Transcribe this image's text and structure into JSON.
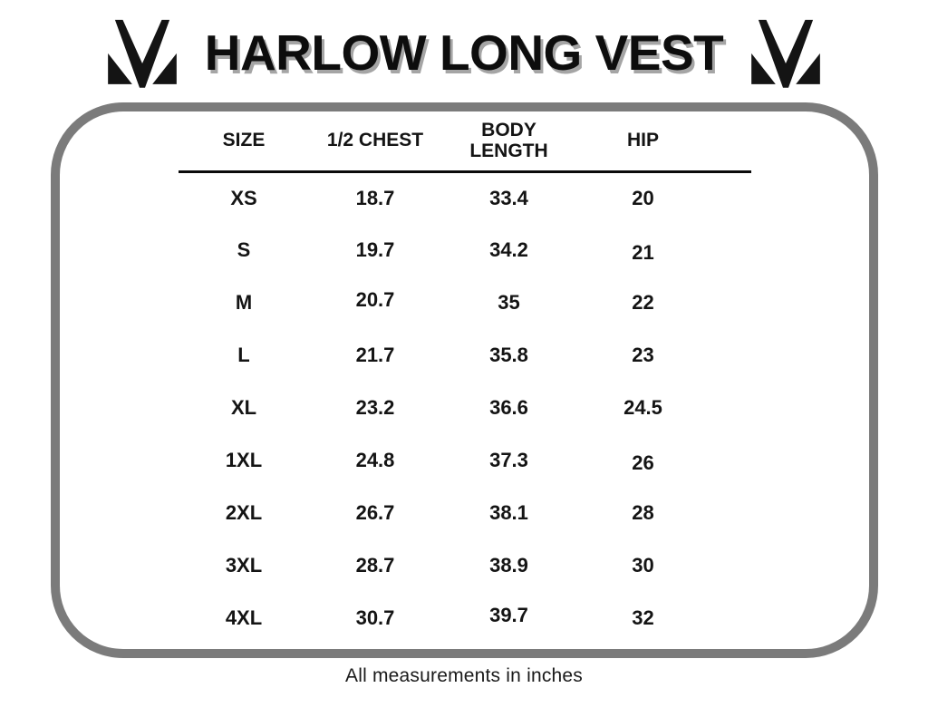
{
  "title": "HARLOW LONG VEST",
  "footnote": "All measurements in inches",
  "logo": {
    "name": "mm-monogram-logo",
    "color": "#141414"
  },
  "colors": {
    "panel_border": "#7b7b7b",
    "text": "#141414",
    "title_shadow": "#a5a5a5",
    "background": "#ffffff"
  },
  "chart_data": {
    "type": "table",
    "title": "HARLOW LONG VEST",
    "columns": [
      "SIZE",
      "1/2 CHEST",
      "BODY LENGTH",
      "HIP"
    ],
    "rows": [
      [
        "XS",
        "18.7",
        "33.4",
        "20"
      ],
      [
        "S",
        "19.7",
        "34.2",
        "21"
      ],
      [
        "M",
        "20.7",
        "35",
        "22"
      ],
      [
        "L",
        "21.7",
        "35.8",
        "23"
      ],
      [
        "XL",
        "23.2",
        "36.6",
        "24.5"
      ],
      [
        "1XL",
        "24.8",
        "37.3",
        "26"
      ],
      [
        "2XL",
        "26.7",
        "38.1",
        "28"
      ],
      [
        "3XL",
        "28.7",
        "38.9",
        "30"
      ],
      [
        "4XL",
        "30.7",
        "39.7",
        "32"
      ]
    ],
    "units": "inches",
    "note": "All measurements in inches"
  }
}
